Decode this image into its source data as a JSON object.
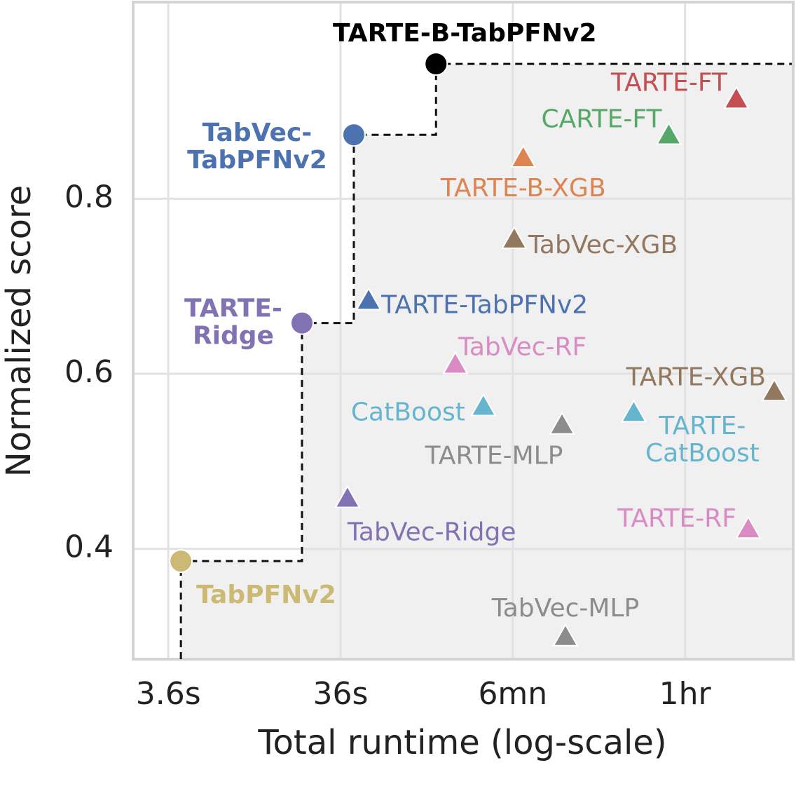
{
  "chart_data": {
    "type": "scatter",
    "x_label": "Total runtime (log-scale)",
    "y_label": "Normalized score",
    "xscale": "log",
    "grid": true,
    "xlim": [
      2.25,
      15000
    ],
    "ylim": [
      0.274,
      1.023
    ],
    "xticks": [
      {
        "value": 3.6,
        "label": "3.6s"
      },
      {
        "value": 36,
        "label": "36s"
      },
      {
        "value": 360,
        "label": "6mn"
      },
      {
        "value": 3600,
        "label": "1hr"
      }
    ],
    "yticks": [
      0.4,
      0.6,
      0.8
    ],
    "series": [
      {
        "name": [
          "TabPFNv2"
        ],
        "color": "#ccb974",
        "marker": "circle",
        "x": [
          4.26
        ],
        "values": [
          0.386
        ]
      },
      {
        "name": [
          "TARTE-",
          "Ridge"
        ],
        "color": "#8172b3",
        "marker": "circle",
        "x": [
          21.5
        ],
        "values": [
          0.658
        ]
      },
      {
        "name": [
          "TabVec-",
          "TabPFNv2"
        ],
        "color": "#4c72b0",
        "marker": "circle",
        "x": [
          43
        ],
        "values": [
          0.873
        ]
      },
      {
        "name": [
          "TARTE-B-TabPFNv2"
        ],
        "color": "#000000",
        "marker": "circle",
        "x": [
          129
        ],
        "values": [
          0.954
        ]
      },
      {
        "name": [
          "TARTE-FT"
        ],
        "color": "#c44e52",
        "marker": "triangle",
        "x": [
          7150
        ],
        "values": [
          0.913
        ]
      },
      {
        "name": [
          "CARTE-FT"
        ],
        "color": "#55a868",
        "marker": "triangle",
        "x": [
          2898
        ],
        "values": [
          0.872
        ]
      },
      {
        "name": [
          "TARTE-B-XGB"
        ],
        "color": "#dd8452",
        "marker": "triangle",
        "x": [
          414
        ],
        "values": [
          0.846
        ]
      },
      {
        "name": [
          "TabVec-XGB"
        ],
        "color": "#937860",
        "marker": "triangle",
        "x": [
          367
        ],
        "values": [
          0.753
        ]
      },
      {
        "name": [
          "TARTE-TabPFNv2"
        ],
        "color": "#4c72b0",
        "marker": "triangle",
        "x": [
          52.4
        ],
        "values": [
          0.683
        ]
      },
      {
        "name": [
          "TabVec-RF"
        ],
        "color": "#da8bc3",
        "marker": "triangle",
        "x": [
          167
        ],
        "values": [
          0.61
        ]
      },
      {
        "name": [
          "TARTE-XGB"
        ],
        "color": "#937860",
        "marker": "triangle",
        "x": [
          11870
        ],
        "values": [
          0.579
        ]
      },
      {
        "name": [
          "CatBoost"
        ],
        "color": "#64b5cd",
        "marker": "triangle",
        "x": [
          243
        ],
        "values": [
          0.562
        ]
      },
      {
        "name": [
          "TARTE-",
          "CatBoost"
        ],
        "color": "#64b5cd",
        "marker": "triangle",
        "x": [
          1813
        ],
        "values": [
          0.555
        ]
      },
      {
        "name": [
          "TARTE-MLP"
        ],
        "color": "#8c8c8c",
        "marker": "triangle",
        "x": [
          695
        ],
        "values": [
          0.541
        ]
      },
      {
        "name": [
          "TabVec-Ridge"
        ],
        "color": "#8172b3",
        "marker": "triangle",
        "x": [
          39.5
        ],
        "values": [
          0.457
        ]
      },
      {
        "name": [
          "TARTE-RF"
        ],
        "color": "#da8bc3",
        "marker": "triangle",
        "x": [
          8386
        ],
        "values": [
          0.422
        ]
      },
      {
        "name": [
          "TabVec-MLP"
        ],
        "color": "#8c8c8c",
        "marker": "triangle",
        "x": [
          728
        ],
        "values": [
          0.299
        ]
      }
    ]
  }
}
